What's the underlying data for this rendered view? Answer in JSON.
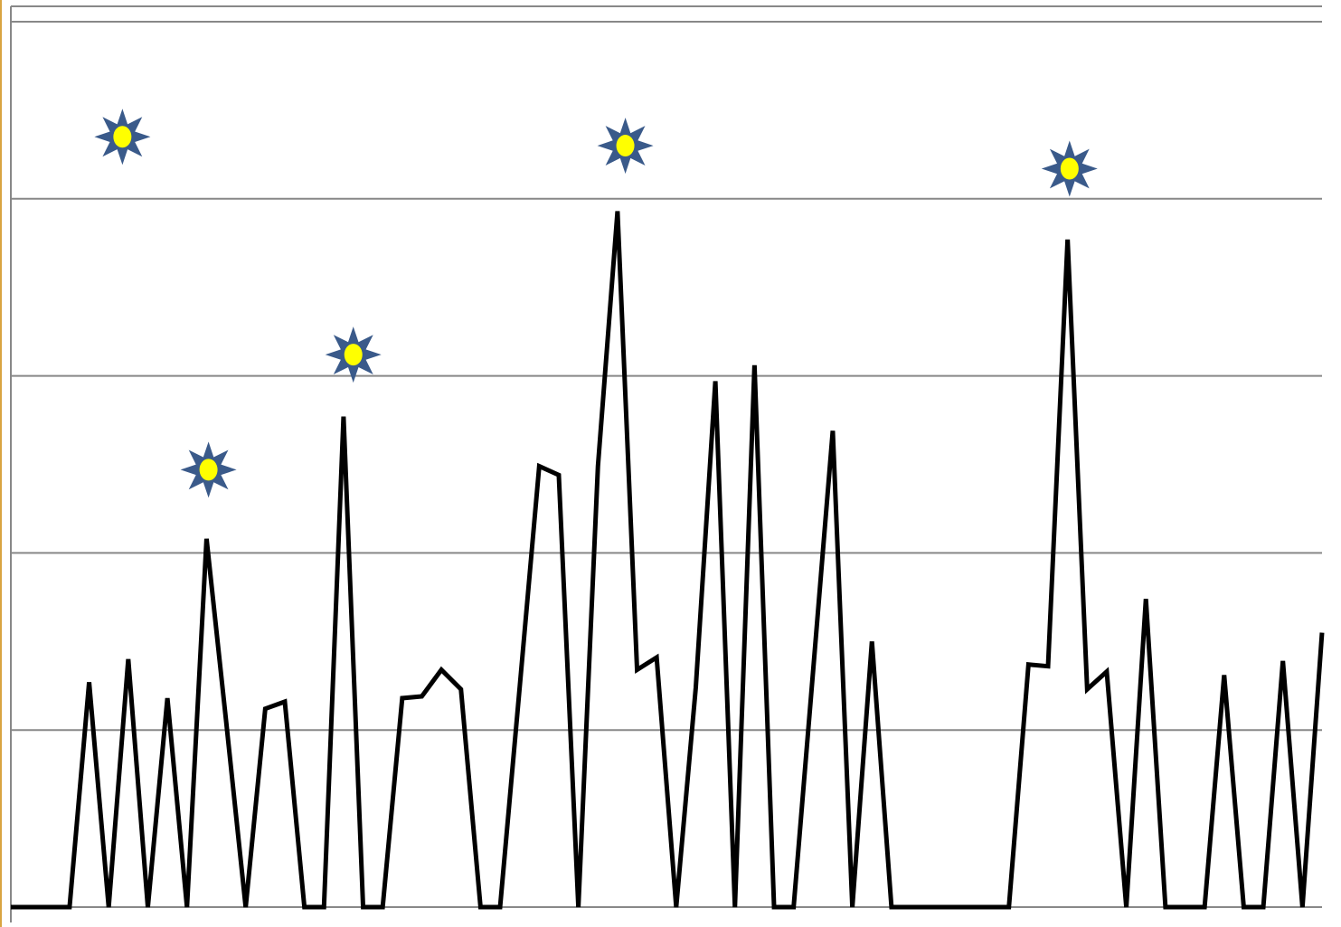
{
  "chart_data": {
    "type": "line",
    "x": [
      0,
      1,
      2,
      3,
      4,
      5,
      6,
      7,
      8,
      9,
      10,
      11,
      12,
      13,
      14,
      15,
      16,
      17,
      18,
      19,
      20,
      21,
      22,
      23,
      24,
      25,
      26,
      27,
      28,
      29,
      30,
      31,
      32,
      33,
      34,
      35,
      36,
      37,
      38,
      39,
      40,
      41,
      42,
      43,
      44,
      45,
      46,
      47,
      48,
      49,
      50,
      51,
      52,
      53,
      54,
      55,
      56,
      57,
      58,
      59,
      60,
      61,
      62,
      63,
      64,
      65,
      66,
      67
    ],
    "xlim": [
      0,
      67
    ],
    "ylim": [
      0,
      5
    ],
    "yticks": [
      0,
      1,
      2,
      3,
      4,
      5
    ],
    "grid": true,
    "series": [
      {
        "color": "#000000",
        "values": [
          0,
          0,
          0,
          0,
          1.27,
          0,
          1.4,
          0,
          1.18,
          0,
          2.08,
          1.05,
          0,
          1.12,
          1.16,
          0,
          0,
          2.77,
          0,
          0,
          1.18,
          1.19,
          1.34,
          1.23,
          0,
          0,
          1.24,
          2.49,
          2.44,
          0,
          2.49,
          3.93,
          1.34,
          1.41,
          0,
          1.24,
          2.97,
          0,
          3.06,
          0,
          0,
          1.34,
          2.69,
          0,
          1.5,
          0,
          0,
          0,
          0,
          0,
          0,
          0,
          1.37,
          1.36,
          3.77,
          1.23,
          1.33,
          0,
          1.74,
          0,
          0,
          0,
          1.31,
          0,
          0,
          1.39,
          0,
          1.55
        ]
      },
      {
        "type": "scatter",
        "color": "#ffff00",
        "edgecolor": "#3a5a8a",
        "x": [
          5.7,
          10.1,
          17.5,
          31.4,
          54.1
        ],
        "values": [
          4.35,
          2.47,
          3.12,
          4.3,
          4.17
        ]
      }
    ]
  }
}
